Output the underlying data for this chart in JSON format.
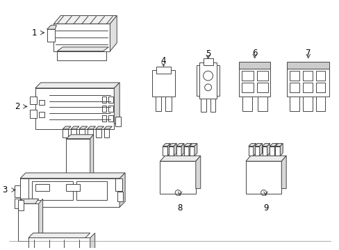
{
  "background_color": "#ffffff",
  "line_color": "#444444",
  "fill_color": "#ffffff",
  "gray_fill": "#aaaaaa",
  "light_gray": "#cccccc",
  "label_color": "#000000",
  "lw": 0.7,
  "items": [
    {
      "id": "1"
    },
    {
      "id": "2"
    },
    {
      "id": "3"
    },
    {
      "id": "4"
    },
    {
      "id": "5"
    },
    {
      "id": "6"
    },
    {
      "id": "7"
    },
    {
      "id": "8"
    },
    {
      "id": "9"
    }
  ]
}
